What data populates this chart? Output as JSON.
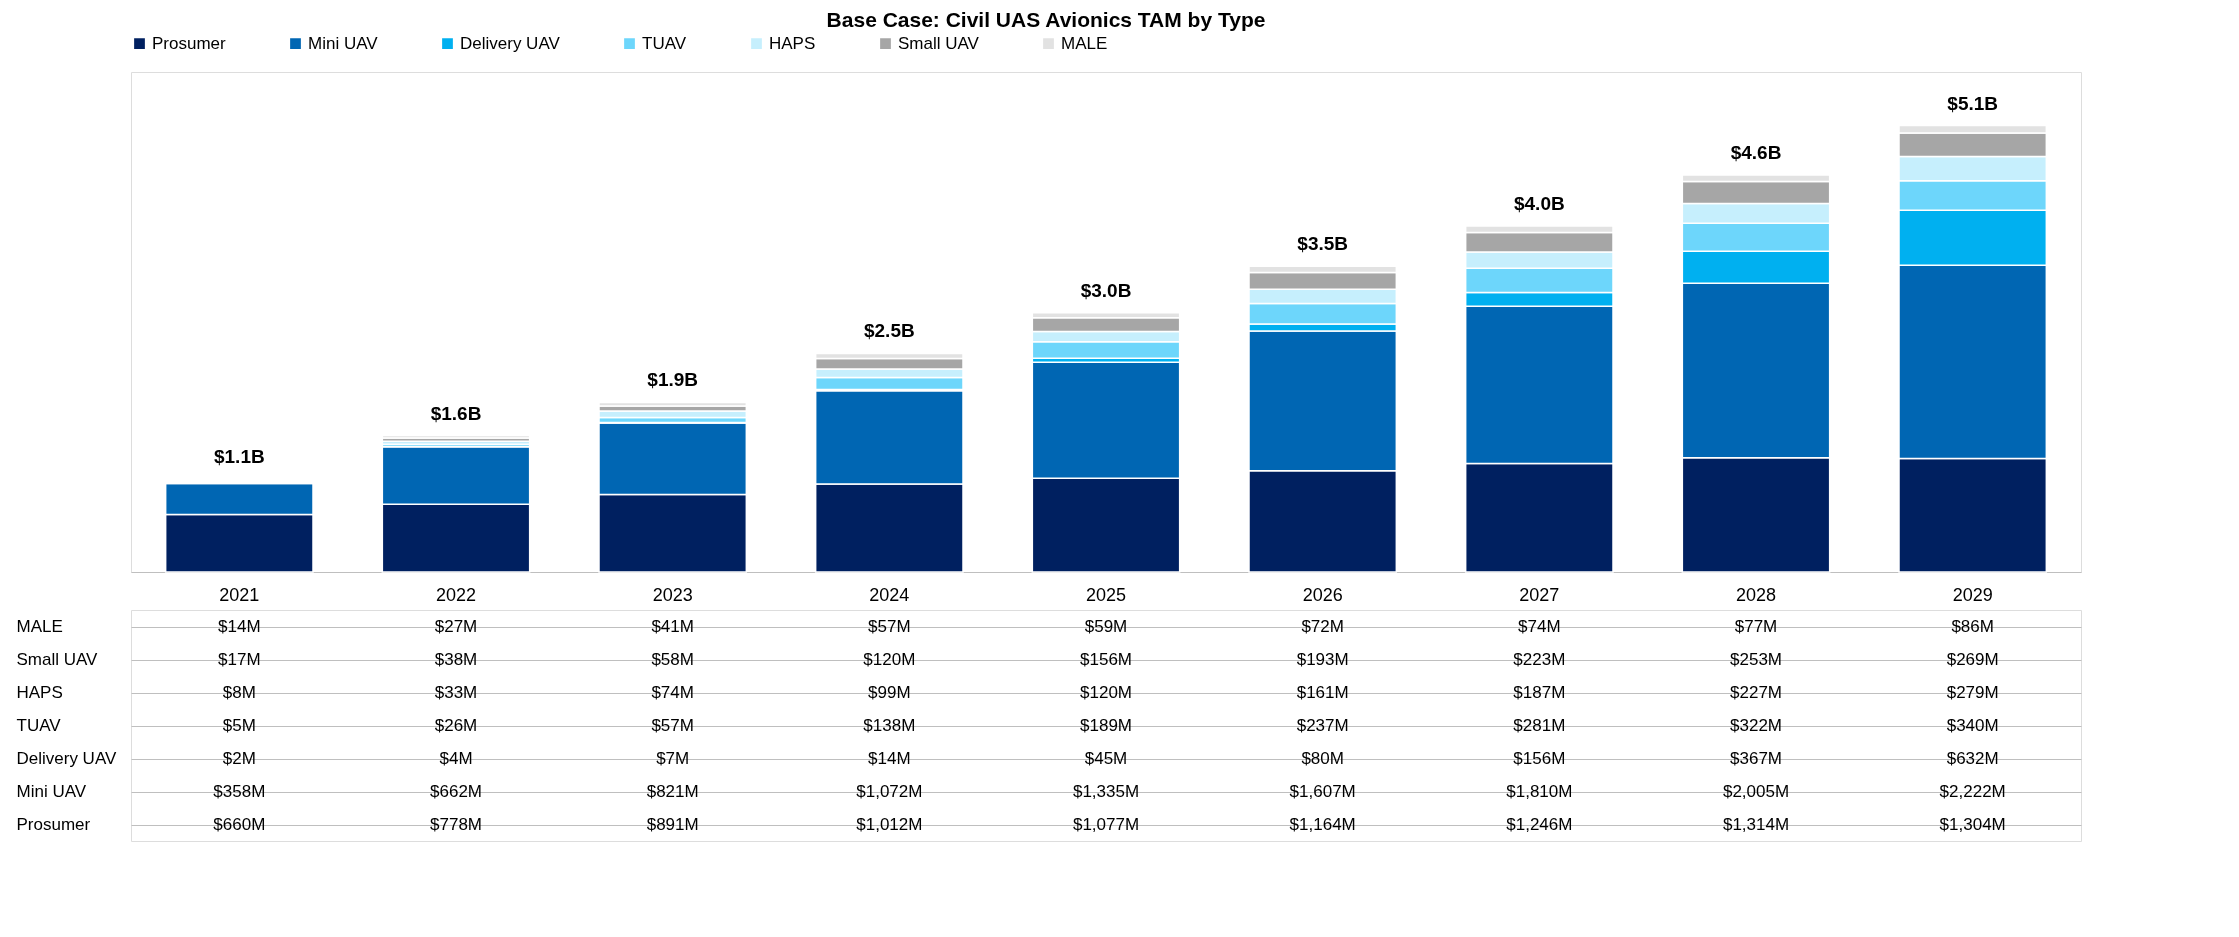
{
  "chart_data": {
    "type": "bar",
    "title": "Base Case: Civil UAS Avionics TAM by Type",
    "stacked": true,
    "legend": "top",
    "grid": false,
    "tick_labels": "x",
    "categories": [
      "2021",
      "2022",
      "2023",
      "2024",
      "2025",
      "2026",
      "2027",
      "2028",
      "2029"
    ],
    "series": [
      {
        "name": "Prosumer",
        "color": "#002060",
        "values": [
          660,
          778,
          891,
          1012,
          1077,
          1164,
          1246,
          1314,
          1304
        ],
        "value_labels": [
          "$660M",
          "$778M",
          "$891M",
          "$1,012M",
          "$1,077M",
          "$1,164M",
          "$1,246M",
          "$1,314M",
          "$1,304M"
        ]
      },
      {
        "name": "Mini UAV",
        "color": "#0066b3",
        "values": [
          358,
          662,
          821,
          1072,
          1335,
          1607,
          1810,
          2005,
          2222
        ],
        "value_labels": [
          "$358M",
          "$662M",
          "$821M",
          "$1,072M",
          "$1,335M",
          "$1,607M",
          "$1,810M",
          "$2,005M",
          "$2,222M"
        ]
      },
      {
        "name": "Delivery UAV",
        "color": "#00b0f0",
        "values": [
          2,
          4,
          7,
          14,
          45,
          80,
          156,
          367,
          632
        ],
        "value_labels": [
          "$2M",
          "$4M",
          "$7M",
          "$14M",
          "$45M",
          "$80M",
          "$156M",
          "$367M",
          "$632M"
        ]
      },
      {
        "name": "TUAV",
        "color": "#6dd6fb",
        "values": [
          5,
          26,
          57,
          138,
          189,
          237,
          281,
          322,
          340
        ],
        "value_labels": [
          "$5M",
          "$26M",
          "$57M",
          "$138M",
          "$189M",
          "$237M",
          "$281M",
          "$322M",
          "$340M"
        ]
      },
      {
        "name": "HAPS",
        "color": "#c6effd",
        "values": [
          8,
          33,
          74,
          99,
          120,
          161,
          187,
          227,
          279
        ],
        "value_labels": [
          "$8M",
          "$33M",
          "$74M",
          "$99M",
          "$120M",
          "$161M",
          "$187M",
          "$227M",
          "$279M"
        ]
      },
      {
        "name": "Small UAV",
        "color": "#a6a6a6",
        "values": [
          17,
          38,
          58,
          120,
          156,
          193,
          223,
          253,
          269
        ],
        "value_labels": [
          "$17M",
          "$38M",
          "$58M",
          "$120M",
          "$156M",
          "$193M",
          "$223M",
          "$253M",
          "$269M"
        ]
      },
      {
        "name": "MALE",
        "color": "#e2e2e2",
        "values": [
          14,
          27,
          41,
          57,
          59,
          72,
          74,
          77,
          86
        ],
        "value_labels": [
          "$14M",
          "$27M",
          "$41M",
          "$57M",
          "$59M",
          "$72M",
          "$74M",
          "$77M",
          "$86M"
        ]
      }
    ],
    "totals": [
      "$1.1B",
      "$1.6B",
      "$1.9B",
      "$2.5B",
      "$3.0B",
      "$3.5B",
      "$4.0B",
      "$4.6B",
      "$5.1B"
    ]
  }
}
